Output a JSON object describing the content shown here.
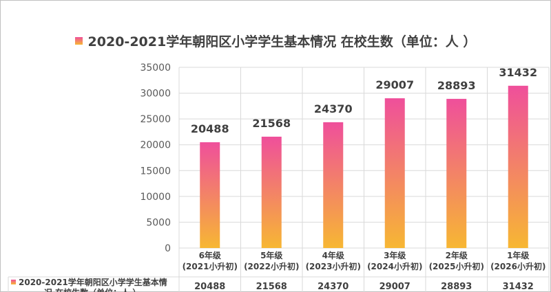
{
  "chart_data": {
    "type": "bar",
    "title": "2020-2021学年朝阳区小学学生基本情况 在校生数（单位：人 ）",
    "categories": [
      [
        "6年级",
        "(2021小升初)"
      ],
      [
        "5年级",
        "(2022小升初)"
      ],
      [
        "4年级",
        "(2023小升初)"
      ],
      [
        "3年级",
        "(2024小升初)"
      ],
      [
        "2年级",
        "(2025小升初)"
      ],
      [
        "1年级",
        "(2026小升初)"
      ]
    ],
    "series": [
      {
        "name": "2020-2021学年朝阳区小学学生基本情况 在校生数（单位：人 ）",
        "values": [
          20488,
          21568,
          24370,
          29007,
          28893,
          31432
        ]
      }
    ],
    "ylim": [
      0,
      35000
    ],
    "yticks": [
      0,
      5000,
      10000,
      15000,
      20000,
      25000,
      30000,
      35000
    ],
    "data_table": true,
    "table_legend_lines": [
      "2020-2021学年朝阳区小学学生基本情",
      "况 在校生数（单位：人 ）"
    ],
    "grid": true,
    "colors": {
      "bar_top": "#ef4f9b",
      "bar_bottom": "#f7b733",
      "grid": "#d9d9d9"
    }
  }
}
